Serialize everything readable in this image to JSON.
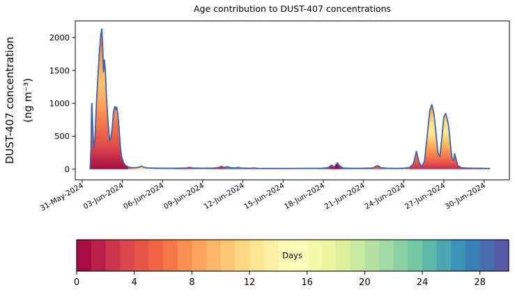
{
  "figure": {
    "title": "Age contribution to DUST-407 concentrations",
    "ylabel_line1": "DUST-407 concentration",
    "ylabel_line2": "(ng m⁻³)",
    "colorbar_label": "Days"
  },
  "chart_data": {
    "type": "area",
    "title": "Age contribution to DUST-407 concentrations",
    "ylabel": "DUST-407 concentration (ng m⁻³)",
    "xlabel": "",
    "x_unit": "days since 31-May-2024 00:00",
    "xlim_days": [
      -0.5,
      31.9
    ],
    "ylim": [
      -110,
      2253
    ],
    "grid": false,
    "yticks": [
      0,
      500,
      1000,
      1500,
      2000
    ],
    "xticks_days": [
      0,
      3,
      6,
      9,
      12,
      15,
      18,
      21,
      24,
      27,
      30
    ],
    "xtick_labels": [
      "31-May-2024",
      "03-Jun-2024",
      "06-Jun-2024",
      "09-Jun-2024",
      "12-Jun-2024",
      "15-Jun-2024",
      "18-Jun-2024",
      "21-Jun-2024",
      "24-Jun-2024",
      "27-Jun-2024",
      "30-Jun-2024"
    ],
    "line_color": "#3f62ad",
    "total_series": {
      "name": "total-DUST-407-concentration",
      "points": [
        [
          0.6,
          4
        ],
        [
          0.66,
          300
        ],
        [
          0.71,
          950
        ],
        [
          0.74,
          1000
        ],
        [
          0.78,
          700
        ],
        [
          0.84,
          420
        ],
        [
          0.9,
          330
        ],
        [
          0.97,
          520
        ],
        [
          1.05,
          900
        ],
        [
          1.15,
          1300
        ],
        [
          1.28,
          1750
        ],
        [
          1.4,
          2050
        ],
        [
          1.47,
          2130
        ],
        [
          1.54,
          1850
        ],
        [
          1.6,
          1480
        ],
        [
          1.66,
          1660
        ],
        [
          1.73,
          1520
        ],
        [
          1.82,
          1100
        ],
        [
          1.92,
          760
        ],
        [
          2.0,
          560
        ],
        [
          2.06,
          430
        ],
        [
          2.14,
          470
        ],
        [
          2.24,
          620
        ],
        [
          2.35,
          880
        ],
        [
          2.45,
          950
        ],
        [
          2.52,
          900
        ],
        [
          2.58,
          945
        ],
        [
          2.66,
          850
        ],
        [
          2.76,
          620
        ],
        [
          2.86,
          330
        ],
        [
          2.96,
          180
        ],
        [
          3.1,
          95
        ],
        [
          3.25,
          55
        ],
        [
          3.45,
          32
        ],
        [
          3.7,
          22
        ],
        [
          4.1,
          24
        ],
        [
          4.3,
          32
        ],
        [
          4.43,
          48
        ],
        [
          4.58,
          30
        ],
        [
          4.9,
          18
        ],
        [
          5.5,
          15
        ],
        [
          6.2,
          14
        ],
        [
          7.0,
          14
        ],
        [
          7.8,
          18
        ],
        [
          8.0,
          28
        ],
        [
          8.25,
          18
        ],
        [
          9.0,
          14
        ],
        [
          9.8,
          16
        ],
        [
          10.15,
          24
        ],
        [
          10.4,
          40
        ],
        [
          10.6,
          28
        ],
        [
          10.85,
          36
        ],
        [
          11.1,
          22
        ],
        [
          11.4,
          18
        ],
        [
          11.65,
          26
        ],
        [
          11.9,
          16
        ],
        [
          12.5,
          13
        ],
        [
          12.85,
          18
        ],
        [
          13.1,
          12
        ],
        [
          14.0,
          12
        ],
        [
          15.0,
          12
        ],
        [
          16.0,
          12
        ],
        [
          17.0,
          13
        ],
        [
          17.9,
          14
        ],
        [
          18.35,
          22
        ],
        [
          18.62,
          62
        ],
        [
          18.8,
          30
        ],
        [
          19.05,
          95
        ],
        [
          19.25,
          42
        ],
        [
          19.5,
          16
        ],
        [
          20.2,
          13
        ],
        [
          21.0,
          14
        ],
        [
          21.7,
          18
        ],
        [
          22.05,
          55
        ],
        [
          22.3,
          22
        ],
        [
          22.8,
          14
        ],
        [
          23.4,
          12
        ],
        [
          24.0,
          14
        ],
        [
          24.45,
          25
        ],
        [
          24.72,
          80
        ],
        [
          24.95,
          270
        ],
        [
          25.15,
          100
        ],
        [
          25.35,
          40
        ],
        [
          25.55,
          120
        ],
        [
          25.75,
          500
        ],
        [
          25.95,
          900
        ],
        [
          26.1,
          980
        ],
        [
          26.25,
          850
        ],
        [
          26.4,
          560
        ],
        [
          26.55,
          250
        ],
        [
          26.7,
          190
        ],
        [
          26.85,
          480
        ],
        [
          27.0,
          800
        ],
        [
          27.13,
          845
        ],
        [
          27.22,
          780
        ],
        [
          27.32,
          690
        ],
        [
          27.42,
          520
        ],
        [
          27.52,
          300
        ],
        [
          27.62,
          150
        ],
        [
          27.72,
          130
        ],
        [
          27.8,
          235
        ],
        [
          27.92,
          140
        ],
        [
          28.05,
          50
        ],
        [
          28.3,
          22
        ],
        [
          28.7,
          16
        ],
        [
          29.3,
          14
        ],
        [
          29.9,
          13
        ],
        [
          30.4,
          10
        ]
      ]
    },
    "fills": [
      {
        "name": "dust-event-early-june",
        "d_range": [
          0.55,
          3.45
        ],
        "orientation": "vertical",
        "stops": [
          [
            0,
            "#ec6a47"
          ],
          [
            0.18,
            "#fa9753"
          ],
          [
            0.38,
            "#fdc46e"
          ],
          [
            0.52,
            "#fca95d"
          ],
          [
            0.68,
            "#f4764a"
          ],
          [
            0.84,
            "#dd4a4b"
          ],
          [
            1,
            "#a60c45"
          ]
        ]
      },
      {
        "name": "quiet-period-age-strip",
        "d_range": [
          3.45,
          24.45
        ],
        "orientation": "horizontal",
        "stops": [
          [
            0,
            "#ef6545"
          ],
          [
            0.044,
            "#fee594"
          ],
          [
            0.086,
            "#b5e1a2"
          ],
          [
            0.133,
            "#72c7a5"
          ],
          [
            0.181,
            "#486cb0"
          ],
          [
            0.214,
            "#da464d"
          ],
          [
            0.257,
            "#4ca5b1"
          ],
          [
            0.329,
            "#cc344d"
          ],
          [
            0.371,
            "#3b92b9"
          ],
          [
            0.445,
            "#da464d"
          ],
          [
            0.481,
            "#3b92b9"
          ],
          [
            0.548,
            "#486cb0"
          ],
          [
            0.619,
            "#89d0a5"
          ],
          [
            0.686,
            "#3b92b9"
          ],
          [
            0.72,
            "#c31b4a"
          ],
          [
            0.74,
            "#9e0142"
          ],
          [
            0.776,
            "#3b92b9"
          ],
          [
            0.833,
            "#486cb0"
          ],
          [
            0.883,
            "#e55649"
          ],
          [
            0.91,
            "#3b92b9"
          ],
          [
            0.957,
            "#5db8a9"
          ],
          [
            1,
            "#ef6545"
          ]
        ]
      },
      {
        "name": "dust-event-late-june",
        "d_range": [
          24.45,
          30.45
        ],
        "orientation": "vertical",
        "stops": [
          [
            0,
            "#f28b4f"
          ],
          [
            0.22,
            "#fdd67c"
          ],
          [
            0.42,
            "#fdeb9c"
          ],
          [
            0.58,
            "#fdc468"
          ],
          [
            0.76,
            "#f88850"
          ],
          [
            0.9,
            "#e8564a"
          ],
          [
            1,
            "#c22a4c"
          ]
        ]
      }
    ],
    "colorbar": {
      "label": "Days",
      "colormap": "Spectral",
      "range": [
        0,
        30
      ],
      "n_segments": 30,
      "ticks": [
        0,
        4,
        8,
        12,
        16,
        20,
        24,
        28
      ],
      "colors": [
        "#a70b44",
        "#ba2049",
        "#cc344d",
        "#da464d",
        "#e55649",
        "#ef6545",
        "#f67848",
        "#f98e52",
        "#fca35c",
        "#fdb668",
        "#fec776",
        "#fed884",
        "#fee594",
        "#fff0a5",
        "#fffbb6",
        "#fbfdb8",
        "#f3faac",
        "#eaf79f",
        "#dcf19a",
        "#c9e99e",
        "#b5e1a2",
        "#a0d9a4",
        "#89d0a5",
        "#72c7a5",
        "#5db8a9",
        "#4ca5b1",
        "#3b92b9",
        "#397fb9",
        "#486cb0",
        "#5759a7"
      ]
    }
  }
}
